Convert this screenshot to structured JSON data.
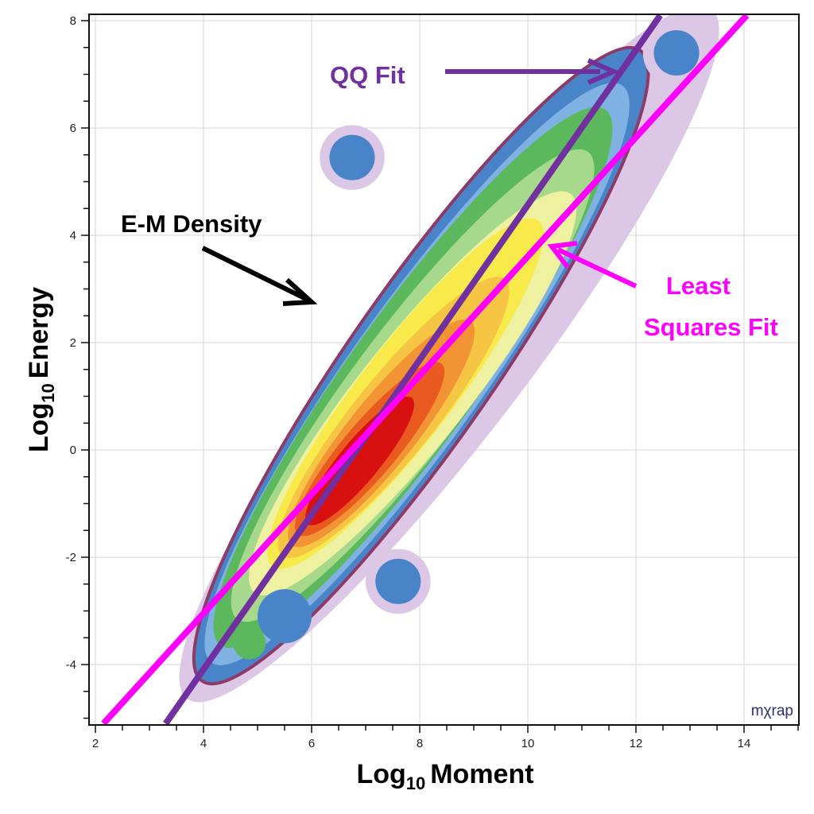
{
  "chart_data": {
    "type": "heatmap",
    "subtype": "density-contour-with-fit-lines",
    "xlabel": {
      "prefix": "Log",
      "sub": "10",
      "text": "Moment"
    },
    "ylabel": {
      "prefix": "Log",
      "sub": "10",
      "text": "Energy"
    },
    "xlim": [
      1.88,
      15.0
    ],
    "ylim": [
      -5.07,
      8.13
    ],
    "x_ticks": [
      2,
      4,
      6,
      8,
      10,
      12,
      14
    ],
    "y_ticks": [
      -4,
      -2,
      0,
      2,
      4,
      6,
      8
    ],
    "minor_tick_step": 0.5,
    "grid": true,
    "density_levels": [
      {
        "name": "halo",
        "color": "#dcc8e6",
        "p1": [
          4.13,
          -4.06
        ],
        "p2": [
          12.96,
          7.64
        ],
        "half_width": 2.4
      },
      {
        "name": "edge",
        "color": "#8e3a66",
        "p1": [
          4.3,
          -3.85
        ],
        "p2": [
          12.8,
          7.45
        ],
        "half_width": 2.25
      },
      {
        "name": "blue",
        "color": "#4a84c8",
        "p1": [
          4.35,
          -3.76
        ],
        "p2": [
          11.7,
          6.9
        ],
        "half_width": 2.2
      },
      {
        "name": "light-blue",
        "color": "#7fb2e2",
        "p1": [
          4.5,
          -3.47
        ],
        "p2": [
          11.4,
          6.3
        ],
        "half_width": 2.0
      },
      {
        "name": "green",
        "color": "#5cb85c",
        "p1": [
          4.65,
          -3.17
        ],
        "p2": [
          11.1,
          5.87
        ],
        "half_width": 1.92
      },
      {
        "name": "light-green",
        "color": "#a6d98c",
        "p1": [
          4.94,
          -2.73
        ],
        "p2": [
          10.8,
          5.13
        ],
        "half_width": 1.75
      },
      {
        "name": "pale-yellow",
        "color": "#eef2a0",
        "p1": [
          5.24,
          -2.28
        ],
        "p2": [
          10.5,
          4.39
        ],
        "half_width": 1.6
      },
      {
        "name": "yellow",
        "color": "#f7ea4a",
        "p1": [
          5.53,
          -1.84
        ],
        "p2": [
          9.94,
          3.94
        ],
        "half_width": 1.4
      },
      {
        "name": "yellow-orange",
        "color": "#f6c544",
        "p1": [
          5.68,
          -1.69
        ],
        "p2": [
          9.35,
          2.9
        ],
        "half_width": 1.2
      },
      {
        "name": "orange",
        "color": "#f29434",
        "p1": [
          5.82,
          -1.54
        ],
        "p2": [
          8.76,
          2.16
        ],
        "half_width": 1.0
      },
      {
        "name": "orange-red",
        "color": "#e85a20",
        "p1": [
          5.9,
          -1.39
        ],
        "p2": [
          8.25,
          1.42
        ],
        "half_width": 0.8
      },
      {
        "name": "red",
        "color": "#d81010",
        "p1": [
          6.04,
          -1.24
        ],
        "p2": [
          7.74,
          0.83
        ],
        "half_width": 0.6
      }
    ],
    "density_blobs": [
      {
        "center": [
          12.75,
          7.4
        ],
        "radius": 0.62,
        "color": "#dcc8e6"
      },
      {
        "center": [
          12.75,
          7.4
        ],
        "radius": 0.42,
        "color": "#4a84c8"
      },
      {
        "center": [
          6.75,
          5.45
        ],
        "radius": 0.6,
        "color": "#dcc8e6"
      },
      {
        "center": [
          6.75,
          5.45
        ],
        "radius": 0.42,
        "color": "#4a84c8"
      },
      {
        "center": [
          7.6,
          -2.45
        ],
        "radius": 0.6,
        "color": "#dcc8e6"
      },
      {
        "center": [
          7.6,
          -2.45
        ],
        "radius": 0.42,
        "color": "#4a84c8"
      },
      {
        "center": [
          5.5,
          -3.1
        ],
        "radius": 0.5,
        "color": "#4a84c8"
      },
      {
        "center": [
          4.85,
          -3.6
        ],
        "radius": 0.3,
        "color": "#5cb85c"
      }
    ],
    "series": [
      {
        "name": "QQ Fit",
        "type": "line",
        "color": "#7030a0",
        "x": [
          3.3,
          12.45
        ],
        "y": [
          -5.1,
          8.1
        ]
      },
      {
        "name": "Least Squares Fit",
        "type": "line",
        "color": "#ff00ff",
        "x": [
          2.15,
          14.05
        ],
        "y": [
          -5.1,
          8.1
        ]
      }
    ],
    "annotations": {
      "qq": {
        "text": "QQ Fit",
        "color": "#7030a0"
      },
      "density": {
        "text": "E-M Density",
        "color": "#000000"
      },
      "ls_line1": {
        "text": "Least",
        "color": "#ff00ff"
      },
      "ls_line2": {
        "text": "Squares Fit",
        "color": "#ff00ff"
      }
    },
    "logo": "mχrap"
  }
}
